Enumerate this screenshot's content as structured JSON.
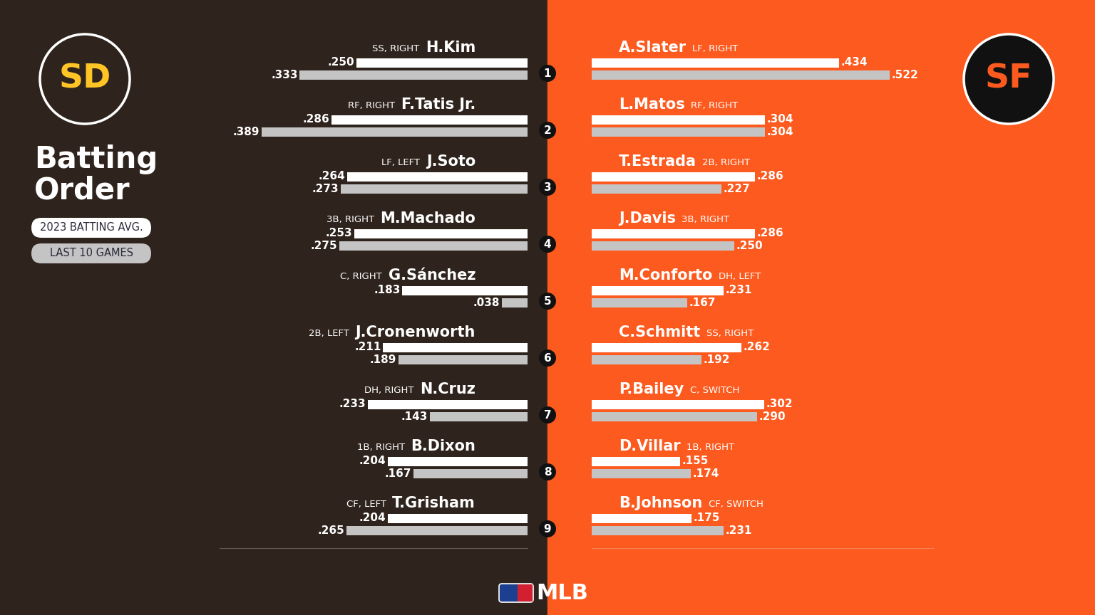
{
  "title": "Batting Order",
  "footer": "MLB",
  "batting_order": [
    1,
    2,
    3,
    4,
    5,
    6,
    7,
    8,
    9
  ],
  "chart_data": [
    {
      "type": "bar",
      "orientation": "horizontal",
      "title": "SD",
      "data_labels": true,
      "tick_labels": false,
      "xlim": [
        0,
        0.45
      ],
      "categories": [
        "H.Kim",
        "F.Tatis Jr.",
        "J.Soto",
        "M.Machado",
        "G.Sánchez",
        "J.Cronenworth",
        "N.Cruz",
        "B.Dixon",
        "T.Grisham"
      ],
      "annotations": [
        "SS, RIGHT",
        "RF, RIGHT",
        "LF, LEFT",
        "3B, RIGHT",
        "C, RIGHT",
        "2B, LEFT",
        "DH, RIGHT",
        "1B, RIGHT",
        "CF, LEFT"
      ],
      "series": [
        {
          "name": "2023 BATTING AVG.",
          "color": "#ffffff",
          "values": [
            0.25,
            0.286,
            0.264,
            0.253,
            0.183,
            0.211,
            0.233,
            0.204,
            0.204
          ],
          "value_labels": [
            ".250",
            ".286",
            ".264",
            ".253",
            ".183",
            ".211",
            ".233",
            ".204",
            ".204"
          ]
        },
        {
          "name": "LAST 10 GAMES",
          "color": "#c4c4c4",
          "values": [
            0.333,
            0.389,
            0.273,
            0.275,
            0.038,
            0.189,
            0.143,
            0.167,
            0.265
          ],
          "value_labels": [
            ".333",
            ".389",
            ".273",
            ".275",
            ".038",
            ".189",
            ".143",
            ".167",
            ".265"
          ]
        }
      ]
    },
    {
      "type": "bar",
      "orientation": "horizontal",
      "title": "SF",
      "data_labels": true,
      "tick_labels": false,
      "xlim": [
        0,
        0.6
      ],
      "categories": [
        "A.Slater",
        "L.Matos",
        "T.Estrada",
        "J.Davis",
        "M.Conforto",
        "C.Schmitt",
        "P.Bailey",
        "D.Villar",
        "B.Johnson"
      ],
      "annotations": [
        "LF, RIGHT",
        "RF, RIGHT",
        "2B, RIGHT",
        "3B, RIGHT",
        "DH, LEFT",
        "SS, RIGHT",
        "C, SWITCH",
        "1B, RIGHT",
        "CF, SWITCH"
      ],
      "series": [
        {
          "name": "2023 BATTING AVG.",
          "color": "#ffffff",
          "values": [
            0.434,
            0.304,
            0.286,
            0.286,
            0.231,
            0.262,
            0.302,
            0.155,
            0.175
          ],
          "value_labels": [
            ".434",
            ".304",
            ".286",
            ".286",
            ".231",
            ".262",
            ".302",
            ".155",
            ".175"
          ]
        },
        {
          "name": "LAST 10 GAMES",
          "color": "#c4c4c4",
          "values": [
            0.522,
            0.304,
            0.227,
            0.25,
            0.167,
            0.192,
            0.29,
            0.174,
            0.231
          ],
          "value_labels": [
            ".522",
            ".304",
            ".227",
            ".250",
            ".167",
            ".192",
            ".290",
            ".174",
            ".231"
          ]
        }
      ]
    }
  ]
}
